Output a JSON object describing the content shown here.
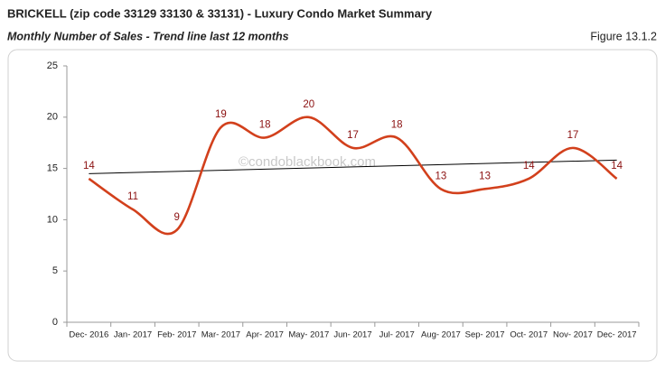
{
  "chart_data": {
    "type": "line",
    "title": "BRICKELL (zip code 33129 33130 & 33131) - Luxury Condo Market Summary",
    "subtitle": "Monthly Number of Sales - Trend line last 12 months",
    "figure": "Figure 13.1.2",
    "watermark": "©condoblackbook.com",
    "categories": [
      "Dec- 2016",
      "Jan- 2017",
      "Feb- 2017",
      "Mar- 2017",
      "Apr- 2017",
      "May- 2017",
      "Jun- 2017",
      "Jul- 2017",
      "Aug- 2017",
      "Sep- 2017",
      "Oct- 2017",
      "Nov- 2017",
      "Dec- 2017"
    ],
    "values": [
      14,
      11,
      9,
      19,
      18,
      20,
      17,
      18,
      13,
      13,
      14,
      17,
      14
    ],
    "color": "#d2401c",
    "label_color": "#8b1010",
    "trendline": true,
    "trend_color": "#000000",
    "smooth": true,
    "ylim": [
      0,
      25
    ],
    "yticks": [
      0,
      5,
      10,
      15,
      20,
      25
    ]
  }
}
